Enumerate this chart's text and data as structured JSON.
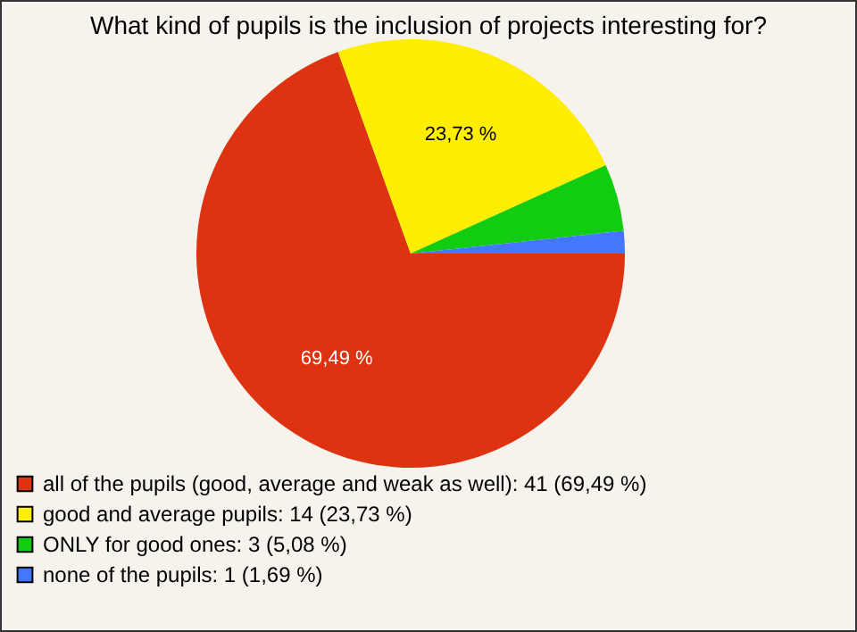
{
  "chart_data": {
    "type": "pie",
    "title": "What kind of pupils is the inclusion of projects interesting for?",
    "categories": [
      "all of the pupils (good, average and weak as well): 41 (69,49 %)",
      "good and average pupils: 14 (23,73 %)",
      "ONLY for good ones: 3 (5,08 %)",
      "none of the pupils: 1 (1,69 %)"
    ],
    "values": [
      69.49,
      23.73,
      5.08,
      1.69
    ],
    "colors": [
      "#dd3311",
      "#ffee00",
      "#11cc11",
      "#4477ff"
    ],
    "value_labels": [
      "69,49 %",
      "23,73 %",
      null,
      null
    ],
    "legend": "bottom left"
  }
}
